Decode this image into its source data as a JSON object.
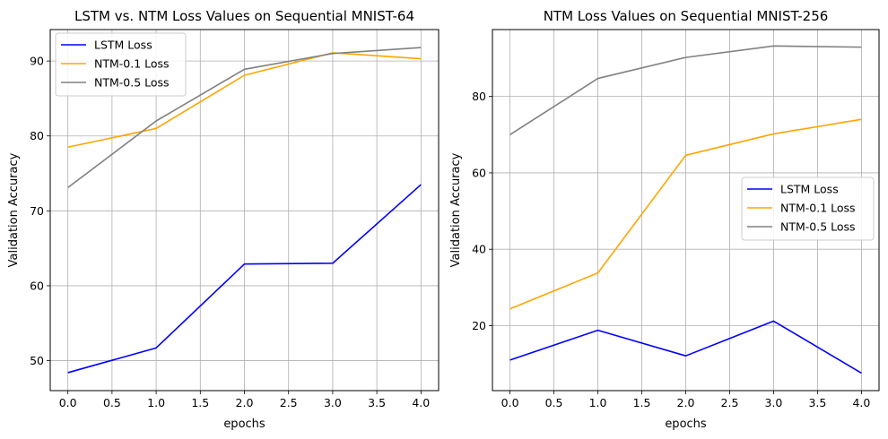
{
  "chart_data": [
    {
      "type": "line",
      "title": "LSTM vs. NTM Loss Values on Sequential MNIST-64",
      "xlabel": "epochs",
      "ylabel": "Validation Accuracy",
      "x": [
        0,
        1,
        2,
        3,
        4
      ],
      "xlim": [
        -0.2,
        4.2
      ],
      "ylim": [
        46,
        94.2
      ],
      "xticks": [
        0.0,
        0.5,
        1.0,
        1.5,
        2.0,
        2.5,
        3.0,
        3.5,
        4.0
      ],
      "xtick_labels": [
        "0.0",
        "0.5",
        "1.0",
        "1.5",
        "2.0",
        "2.5",
        "3.0",
        "3.5",
        "4.0"
      ],
      "yticks": [
        50,
        60,
        70,
        80,
        90
      ],
      "ytick_labels": [
        "50",
        "60",
        "70",
        "80",
        "90"
      ],
      "grid": true,
      "legend_position": "top-left",
      "series": [
        {
          "name": "LSTM Loss",
          "color": "#0000ff",
          "values": [
            48.4,
            51.7,
            62.9,
            63.0,
            73.5
          ]
        },
        {
          "name": "NTM-0.1 Loss",
          "color": "#ffa500",
          "values": [
            78.5,
            81.0,
            88.1,
            91.1,
            90.3
          ]
        },
        {
          "name": "NTM-0.5 Loss",
          "color": "#808080",
          "values": [
            73.1,
            82.0,
            88.9,
            91.0,
            91.8
          ]
        }
      ]
    },
    {
      "type": "line",
      "title": "NTM Loss Values on Sequential MNIST-256",
      "xlabel": "epochs",
      "ylabel": "Validation Accuracy",
      "x": [
        0,
        1,
        2,
        3,
        4
      ],
      "xlim": [
        -0.2,
        4.2
      ],
      "ylim": [
        3,
        97.5
      ],
      "xticks": [
        0.0,
        0.5,
        1.0,
        1.5,
        2.0,
        2.5,
        3.0,
        3.5,
        4.0
      ],
      "xtick_labels": [
        "0.0",
        "0.5",
        "1.0",
        "1.5",
        "2.0",
        "2.5",
        "3.0",
        "3.5",
        "4.0"
      ],
      "yticks": [
        20,
        40,
        60,
        80
      ],
      "ytick_labels": [
        "20",
        "40",
        "60",
        "80"
      ],
      "grid": true,
      "legend_position": "center-right",
      "series": [
        {
          "name": "LSTM Loss",
          "color": "#0000ff",
          "values": [
            11.0,
            18.8,
            12.1,
            21.2,
            7.6
          ]
        },
        {
          "name": "NTM-0.1 Loss",
          "color": "#ffa500",
          "values": [
            24.4,
            33.8,
            64.6,
            70.2,
            74.0
          ]
        },
        {
          "name": "NTM-0.5 Loss",
          "color": "#808080",
          "values": [
            70.0,
            84.7,
            90.2,
            93.2,
            92.9
          ]
        }
      ]
    }
  ]
}
